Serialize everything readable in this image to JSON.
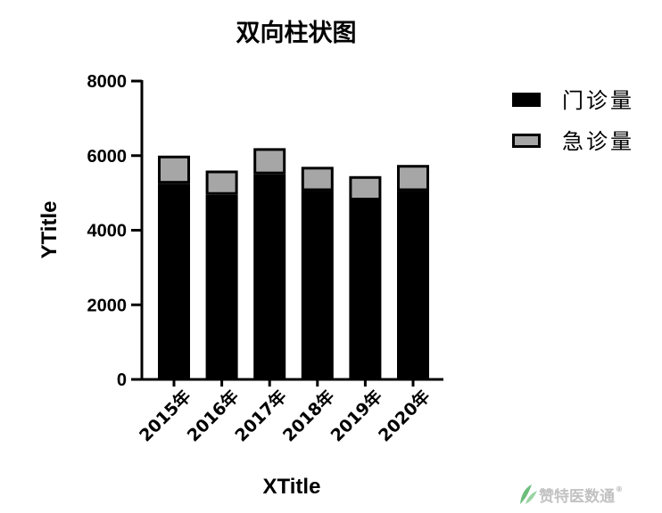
{
  "chart_data": {
    "type": "bar",
    "stacked": true,
    "title": "双向柱状图",
    "xlabel": "XTitle",
    "ylabel": "YTitle",
    "categories": [
      "2015年",
      "2016年",
      "2017年",
      "2018年",
      "2019年",
      "2020年"
    ],
    "series": [
      {
        "name": "门诊量",
        "color": "#000000",
        "values": [
          5250,
          4950,
          5500,
          5050,
          4800,
          5050
        ]
      },
      {
        "name": "急诊量",
        "color": "#a6a6a6",
        "values": [
          750,
          650,
          700,
          650,
          650,
          700
        ]
      }
    ],
    "ylim": [
      0,
      8000
    ],
    "yticks": [
      "0",
      "2000",
      "4000",
      "6000",
      "8000"
    ],
    "grid": false,
    "legend": "top-right"
  },
  "watermark": {
    "text": "赞特医数通",
    "mark": "®",
    "icon": "leaf-logo-icon"
  }
}
